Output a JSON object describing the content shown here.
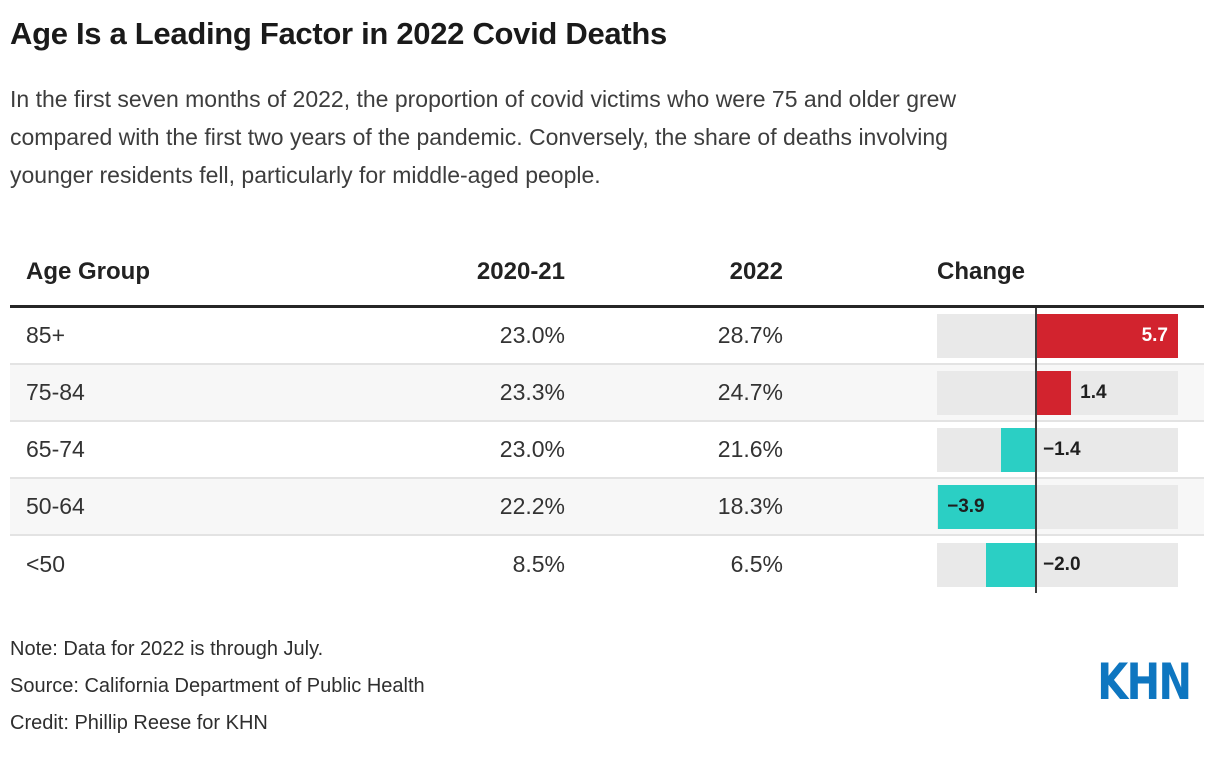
{
  "header": {
    "title": "Age Is a Leading Factor in 2022 Covid Deaths",
    "description_lines": [
      "In the first seven months of 2022, the proportion of covid victims who were 75 and older grew",
      "compared with the first two years of the pandemic. Conversely, the share of deaths involving",
      "younger residents fell, particularly for middle-aged people."
    ]
  },
  "table": {
    "columns": [
      "Age Group",
      "2020-21",
      "2022",
      "Change"
    ],
    "rows": [
      {
        "age_group": "85+",
        "y2020_21": "23.0%",
        "y2022": "28.7%",
        "change": 5.7,
        "change_label": "5.7",
        "bar_color": "#d2232e",
        "label_style": "inside-right-white"
      },
      {
        "age_group": "75-84",
        "y2020_21": "23.3%",
        "y2022": "24.7%",
        "change": 1.4,
        "change_label": "1.4",
        "bar_color": "#d2232e",
        "label_style": "outside-right"
      },
      {
        "age_group": "65-74",
        "y2020_21": "23.0%",
        "y2022": "21.6%",
        "change": -1.4,
        "change_label": "−1.4",
        "bar_color": "#2bcfc4",
        "label_style": "axis-right"
      },
      {
        "age_group": "50-64",
        "y2020_21": "22.2%",
        "y2022": "18.3%",
        "change": -3.9,
        "change_label": "−3.9",
        "bar_color": "#2bcfc4",
        "label_style": "inside-left"
      },
      {
        "age_group": "<50",
        "y2020_21": "8.5%",
        "y2022": "6.5%",
        "change": -2.0,
        "change_label": "−2.0",
        "bar_color": "#2bcfc4",
        "label_style": "axis-right"
      }
    ],
    "bar_styling": {
      "track_color": "#e9e9e9",
      "axis_color": "#3f3f3f",
      "positive_color": "#d2232e",
      "negative_color": "#2bcfc4"
    }
  },
  "footer": {
    "note": "Note: Data for 2022 is through July.",
    "source": "Source: California Department of Public Health",
    "credit": "Credit: Phillip Reese for KHN",
    "logo_text": "KHN",
    "logo_color": "#0e76c0"
  },
  "chart_data": {
    "type": "bar",
    "orientation": "horizontal-diverging",
    "title": "Age Is a Leading Factor in 2022 Covid Deaths",
    "subtitle": "In the first seven months of 2022, the proportion of covid victims who were 75 and older grew compared with the first two years of the pandemic. Conversely, the share of deaths involving younger residents fell, particularly for middle-aged people.",
    "categories": [
      "85+",
      "75-84",
      "65-74",
      "50-64",
      "<50"
    ],
    "series": [
      {
        "name": "2020-21",
        "values": [
          23.0,
          23.3,
          23.0,
          22.2,
          8.5
        ],
        "unit": "%"
      },
      {
        "name": "2022",
        "values": [
          28.7,
          24.7,
          21.6,
          18.3,
          6.5
        ],
        "unit": "%"
      },
      {
        "name": "Change",
        "values": [
          5.7,
          1.4,
          -1.4,
          -3.9,
          -2.0
        ],
        "unit": "percentage points"
      }
    ],
    "xlim": [
      -3.9,
      5.7
    ],
    "grid": false,
    "legend": false,
    "positive_color": "#d2232e",
    "negative_color": "#2bcfc4",
    "note": "Note: Data for 2022 is through July.",
    "source": "Source: California Department of Public Health",
    "credit": "Credit: Phillip Reese for KHN"
  }
}
